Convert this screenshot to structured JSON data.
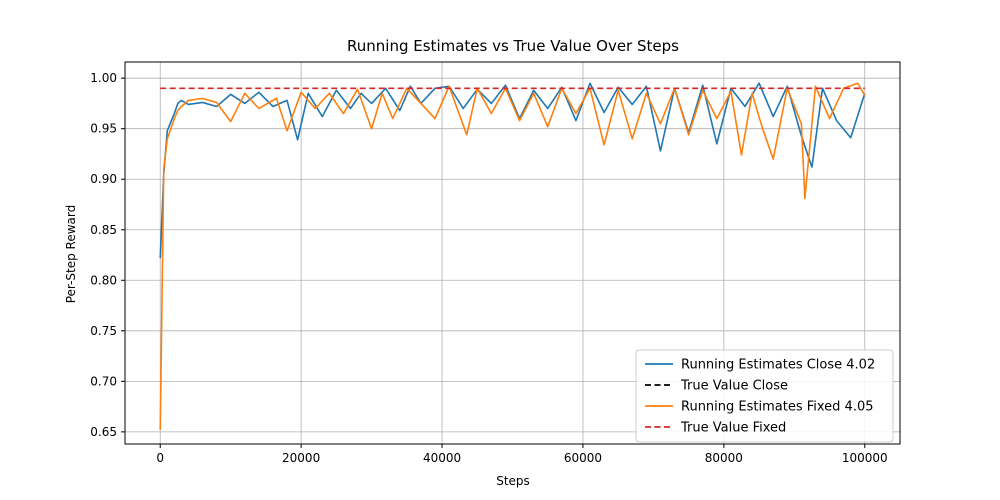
{
  "chart_data": {
    "type": "line",
    "title": "Running Estimates vs True Value Over Steps",
    "xlabel": "Steps",
    "ylabel": "Per-Step Reward",
    "xlim": [
      -5000,
      105000
    ],
    "ylim": [
      0.638,
      1.016
    ],
    "xticks": [
      0,
      20000,
      40000,
      60000,
      80000,
      100000
    ],
    "yticks": [
      0.65,
      0.7,
      0.75,
      0.8,
      0.85,
      0.9,
      0.95,
      1.0
    ],
    "grid": true,
    "legend_position": "lower-right",
    "series": [
      {
        "name": "Running Estimates Close 4.02",
        "color": "#1f77b4",
        "style": "solid",
        "x": [
          0,
          500,
          1000,
          2000,
          2500,
          3000,
          4000,
          6000,
          8000,
          10000,
          12000,
          14000,
          16000,
          18000,
          19500,
          21000,
          23000,
          25000,
          27000,
          28500,
          30000,
          32000,
          34000,
          35500,
          37000,
          39000,
          41000,
          43000,
          45000,
          47000,
          49000,
          51000,
          53000,
          55000,
          57000,
          59000,
          61000,
          63000,
          65000,
          67000,
          69000,
          71000,
          73000,
          75000,
          77000,
          79000,
          81000,
          83000,
          85000,
          87000,
          89000,
          91000,
          92500,
          94000,
          96000,
          98000,
          100000
        ],
        "values": [
          0.822,
          0.905,
          0.948,
          0.965,
          0.975,
          0.978,
          0.974,
          0.976,
          0.972,
          0.984,
          0.975,
          0.986,
          0.972,
          0.978,
          0.939,
          0.985,
          0.962,
          0.988,
          0.97,
          0.985,
          0.975,
          0.99,
          0.968,
          0.992,
          0.975,
          0.99,
          0.992,
          0.97,
          0.989,
          0.975,
          0.993,
          0.96,
          0.988,
          0.97,
          0.991,
          0.958,
          0.995,
          0.966,
          0.991,
          0.974,
          0.992,
          0.928,
          0.99,
          0.946,
          0.993,
          0.935,
          0.99,
          0.972,
          0.995,
          0.962,
          0.992,
          0.943,
          0.912,
          0.99,
          0.958,
          0.941,
          0.985
        ]
      },
      {
        "name": "True Value Close",
        "color": "#000000",
        "style": "dashed",
        "x": [],
        "values": []
      },
      {
        "name": "Running Estimates Fixed 4.05",
        "color": "#ff7f0e",
        "style": "solid",
        "x": [
          0,
          500,
          1000,
          2000,
          2500,
          3000,
          4000,
          6000,
          8000,
          10000,
          12000,
          14000,
          16500,
          18000,
          20000,
          22000,
          24000,
          26000,
          28000,
          30000,
          31500,
          33000,
          35000,
          37000,
          39000,
          41000,
          43500,
          45000,
          47000,
          49000,
          51000,
          53000,
          55000,
          57000,
          59000,
          61000,
          63000,
          65000,
          67000,
          69000,
          71000,
          73000,
          75000,
          77000,
          79000,
          81000,
          82500,
          84000,
          85500,
          87000,
          89000,
          91000,
          91500,
          93000,
          95000,
          97000,
          99000,
          100000
        ],
        "values": [
          0.652,
          0.91,
          0.94,
          0.96,
          0.968,
          0.972,
          0.978,
          0.98,
          0.976,
          0.957,
          0.985,
          0.97,
          0.98,
          0.948,
          0.986,
          0.97,
          0.985,
          0.965,
          0.989,
          0.95,
          0.985,
          0.96,
          0.99,
          0.975,
          0.96,
          0.992,
          0.944,
          0.99,
          0.965,
          0.99,
          0.958,
          0.985,
          0.952,
          0.99,
          0.965,
          0.99,
          0.934,
          0.988,
          0.94,
          0.985,
          0.955,
          0.99,
          0.944,
          0.988,
          0.96,
          0.987,
          0.924,
          0.985,
          0.95,
          0.92,
          0.99,
          0.955,
          0.881,
          0.992,
          0.96,
          0.99,
          0.995,
          0.983
        ]
      },
      {
        "name": "True Value Fixed",
        "color": "#d62728",
        "style": "dashed",
        "x": [
          0,
          100000
        ],
        "values": [
          0.99,
          0.99
        ]
      }
    ]
  }
}
